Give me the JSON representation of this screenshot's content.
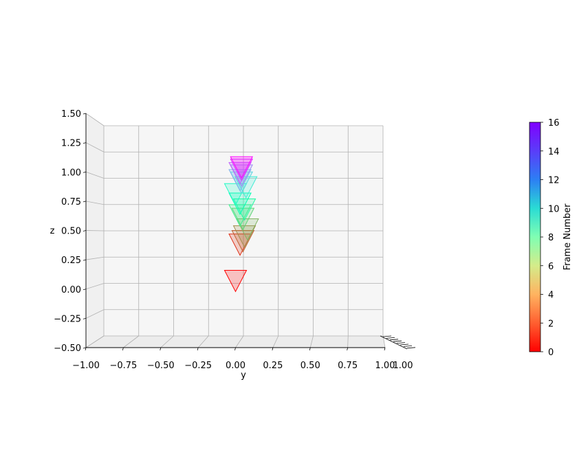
{
  "chart_data": {
    "type": "scatter",
    "view": "3d-projection-yz",
    "xlabel": "y",
    "ylabel": "z",
    "x_ticks": [
      "−1.00",
      "−0.75",
      "−0.50",
      "−0.25",
      "0.00",
      "0.25",
      "0.50",
      "0.75",
      "1.00"
    ],
    "y_ticks": [
      "−0.50",
      "−0.25",
      "0.00",
      "0.25",
      "0.50",
      "0.75",
      "1.00",
      "1.25",
      "1.50"
    ],
    "xlim": [
      -1.0,
      1.0
    ],
    "ylim": [
      -0.5,
      1.5
    ],
    "grid": true,
    "depth_axis_tick_text": "1.00",
    "markers": [
      {
        "frame": 0,
        "y": 0.0,
        "z": 0.16
      },
      {
        "frame": 1,
        "y": 0.03,
        "z": 0.47
      },
      {
        "frame": 2,
        "y": 0.05,
        "z": 0.5
      },
      {
        "frame": 3,
        "y": 0.06,
        "z": 0.54
      },
      {
        "frame": 4,
        "y": 0.08,
        "z": 0.6
      },
      {
        "frame": 5,
        "y": 0.05,
        "z": 0.69
      },
      {
        "frame": 6,
        "y": 0.03,
        "z": 0.72
      },
      {
        "frame": 7,
        "y": 0.06,
        "z": 0.77
      },
      {
        "frame": 8,
        "y": 0.03,
        "z": 0.82
      },
      {
        "frame": 9,
        "y": 0.0,
        "z": 0.9
      },
      {
        "frame": 10,
        "y": 0.07,
        "z": 0.96
      },
      {
        "frame": 11,
        "y": 0.04,
        "z": 1.0
      },
      {
        "frame": 12,
        "y": 0.03,
        "z": 1.02
      },
      {
        "frame": 13,
        "y": 0.04,
        "z": 1.06
      },
      {
        "frame": 14,
        "y": 0.03,
        "z": 1.08
      },
      {
        "frame": 15,
        "y": 0.04,
        "z": 1.11
      },
      {
        "frame": 16,
        "y": 0.04,
        "z": 1.13
      }
    ],
    "colorbar": {
      "label": "Frame Number",
      "min": 0,
      "max": 16,
      "ticks": [
        "0",
        "2",
        "4",
        "6",
        "8",
        "10",
        "12",
        "14",
        "16"
      ],
      "colormap": "rainbow"
    }
  }
}
